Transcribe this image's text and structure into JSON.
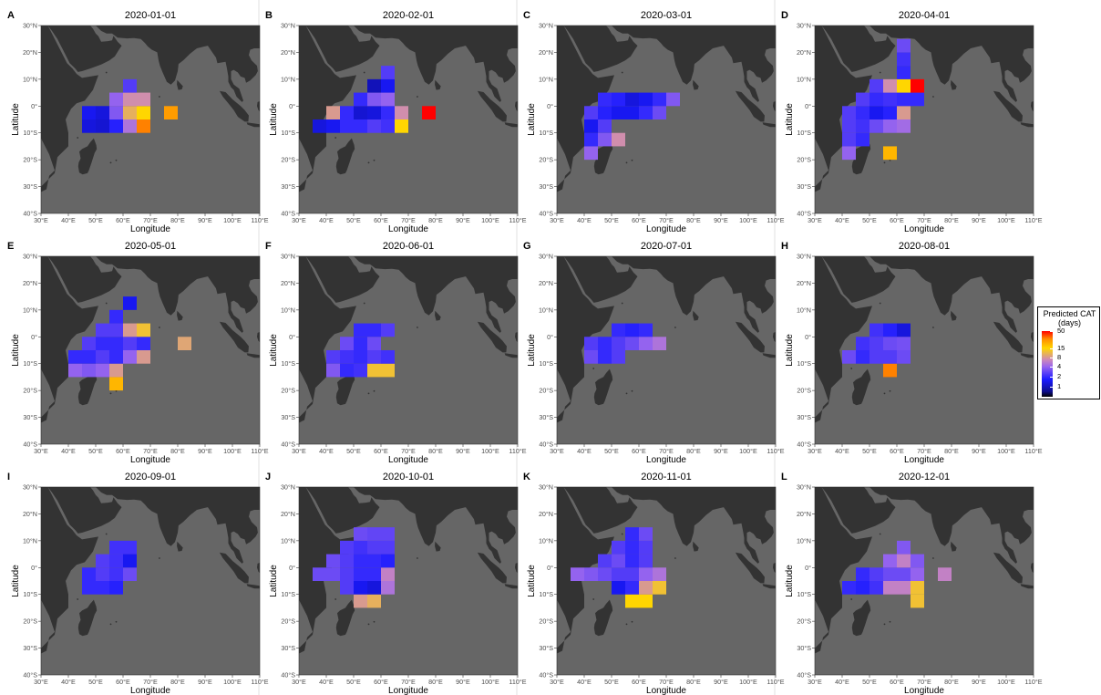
{
  "panels": [
    {
      "letter": "A",
      "date": "2020-01-01",
      "cells": [
        [
          45,
          -10,
          1.3
        ],
        [
          50,
          -10,
          1.2
        ],
        [
          55,
          -10,
          1.8
        ],
        [
          60,
          -10,
          5
        ],
        [
          65,
          -10,
          30
        ],
        [
          45,
          -5,
          1.5
        ],
        [
          50,
          -5,
          1.3
        ],
        [
          55,
          -5,
          3.5
        ],
        [
          60,
          -5,
          10
        ],
        [
          65,
          -5,
          15
        ],
        [
          75,
          -5,
          25
        ],
        [
          55,
          0,
          4
        ],
        [
          60,
          0,
          7
        ],
        [
          65,
          0,
          7
        ],
        [
          60,
          5,
          2.5
        ]
      ]
    },
    {
      "letter": "B",
      "date": "2020-02-01",
      "cells": [
        [
          35,
          -10,
          1.3
        ],
        [
          40,
          -10,
          1.5
        ],
        [
          45,
          -10,
          2
        ],
        [
          50,
          -10,
          2
        ],
        [
          55,
          -10,
          2.5
        ],
        [
          60,
          -10,
          2.2
        ],
        [
          65,
          -10,
          15
        ],
        [
          40,
          -5,
          8
        ],
        [
          45,
          -5,
          2
        ],
        [
          50,
          -5,
          1.2
        ],
        [
          55,
          -5,
          1.3
        ],
        [
          60,
          -5,
          2
        ],
        [
          65,
          -5,
          7
        ],
        [
          75,
          -5,
          50
        ],
        [
          50,
          0,
          2
        ],
        [
          55,
          0,
          3.5
        ],
        [
          60,
          0,
          4
        ],
        [
          55,
          5,
          1
        ],
        [
          60,
          5,
          1.5
        ],
        [
          60,
          10,
          2.5
        ]
      ]
    },
    {
      "letter": "C",
      "date": "2020-03-01",
      "cells": [
        [
          40,
          -20,
          4
        ],
        [
          40,
          -15,
          2
        ],
        [
          45,
          -15,
          3.5
        ],
        [
          40,
          -10,
          1.5
        ],
        [
          45,
          -10,
          2.5
        ],
        [
          50,
          -15,
          7
        ],
        [
          40,
          -5,
          2.5
        ],
        [
          45,
          -5,
          1.8
        ],
        [
          50,
          -5,
          1.5
        ],
        [
          55,
          -5,
          1.5
        ],
        [
          60,
          -5,
          2
        ],
        [
          65,
          -5,
          3
        ],
        [
          45,
          0,
          2
        ],
        [
          50,
          0,
          1.8
        ],
        [
          55,
          0,
          1.3
        ],
        [
          60,
          0,
          1.5
        ],
        [
          65,
          0,
          2
        ],
        [
          70,
          0,
          3.5
        ]
      ]
    },
    {
      "letter": "D",
      "date": "2020-04-01",
      "cells": [
        [
          40,
          -20,
          4
        ],
        [
          40,
          -15,
          2.5
        ],
        [
          45,
          -15,
          2
        ],
        [
          40,
          -10,
          2.5
        ],
        [
          45,
          -10,
          2.2
        ],
        [
          50,
          -10,
          3
        ],
        [
          55,
          -10,
          4
        ],
        [
          60,
          -10,
          4.5
        ],
        [
          40,
          -5,
          2.5
        ],
        [
          45,
          -5,
          2
        ],
        [
          50,
          -5,
          1.5
        ],
        [
          55,
          -5,
          1.8
        ],
        [
          60,
          -5,
          8
        ],
        [
          45,
          0,
          2.5
        ],
        [
          50,
          0,
          2
        ],
        [
          55,
          0,
          2.2
        ],
        [
          60,
          0,
          2
        ],
        [
          65,
          0,
          2
        ],
        [
          50,
          5,
          2.5
        ],
        [
          55,
          5,
          7
        ],
        [
          60,
          5,
          15
        ],
        [
          65,
          5,
          50
        ],
        [
          60,
          10,
          2
        ],
        [
          60,
          15,
          2.2
        ],
        [
          60,
          20,
          3
        ],
        [
          55,
          -20,
          20
        ]
      ]
    },
    {
      "letter": "E",
      "date": "2020-05-01",
      "cells": [
        [
          55,
          -20,
          20
        ],
        [
          40,
          -15,
          4
        ],
        [
          45,
          -15,
          3.5
        ],
        [
          50,
          -15,
          4
        ],
        [
          55,
          -15,
          8
        ],
        [
          40,
          -10,
          2
        ],
        [
          45,
          -10,
          2
        ],
        [
          50,
          -10,
          2.5
        ],
        [
          55,
          -10,
          2
        ],
        [
          60,
          -10,
          4
        ],
        [
          65,
          -10,
          8
        ],
        [
          45,
          -5,
          2.5
        ],
        [
          50,
          -5,
          2
        ],
        [
          55,
          -5,
          2
        ],
        [
          60,
          -5,
          2.5
        ],
        [
          65,
          -5,
          2
        ],
        [
          80,
          -5,
          9
        ],
        [
          50,
          0,
          2.5
        ],
        [
          55,
          0,
          2.5
        ],
        [
          60,
          0,
          8
        ],
        [
          65,
          0,
          12
        ],
        [
          55,
          5,
          2
        ],
        [
          60,
          10,
          1.5
        ]
      ]
    },
    {
      "letter": "F",
      "date": "2020-06-01",
      "cells": [
        [
          40,
          -15,
          3.5
        ],
        [
          45,
          -15,
          2
        ],
        [
          50,
          -15,
          2.2
        ],
        [
          55,
          -15,
          12
        ],
        [
          60,
          -15,
          12
        ],
        [
          40,
          -10,
          2.5
        ],
        [
          45,
          -10,
          2.2
        ],
        [
          50,
          -10,
          2
        ],
        [
          55,
          -10,
          2.5
        ],
        [
          60,
          -10,
          2.2
        ],
        [
          45,
          -5,
          3
        ],
        [
          50,
          -5,
          2
        ],
        [
          55,
          -5,
          3
        ],
        [
          50,
          0,
          2
        ],
        [
          55,
          0,
          2
        ],
        [
          60,
          0,
          2.5
        ]
      ]
    },
    {
      "letter": "G",
      "date": "2020-07-01",
      "cells": [
        [
          40,
          -10,
          3
        ],
        [
          45,
          -10,
          2
        ],
        [
          50,
          -10,
          2.5
        ],
        [
          40,
          -5,
          2.5
        ],
        [
          45,
          -5,
          2
        ],
        [
          50,
          -5,
          2.5
        ],
        [
          55,
          -5,
          3
        ],
        [
          60,
          -5,
          4
        ],
        [
          65,
          -5,
          5
        ],
        [
          50,
          0,
          2
        ],
        [
          55,
          0,
          1.8
        ],
        [
          60,
          0,
          2
        ]
      ]
    },
    {
      "letter": "H",
      "date": "2020-08-01",
      "cells": [
        [
          55,
          -15,
          30
        ],
        [
          40,
          -10,
          3
        ],
        [
          45,
          -10,
          2
        ],
        [
          50,
          -10,
          2.5
        ],
        [
          55,
          -10,
          2.5
        ],
        [
          60,
          -10,
          3
        ],
        [
          45,
          -5,
          2.2
        ],
        [
          50,
          -5,
          2.5
        ],
        [
          55,
          -5,
          3
        ],
        [
          60,
          -5,
          3.2
        ],
        [
          50,
          0,
          2.2
        ],
        [
          55,
          0,
          1.8
        ],
        [
          60,
          0,
          1.3
        ]
      ]
    },
    {
      "letter": "I",
      "date": "2020-09-01",
      "cells": [
        [
          45,
          -10,
          2
        ],
        [
          50,
          -10,
          2
        ],
        [
          55,
          -10,
          1.8
        ],
        [
          45,
          -5,
          2
        ],
        [
          50,
          -5,
          2.5
        ],
        [
          55,
          -5,
          2.2
        ],
        [
          60,
          -5,
          3
        ],
        [
          50,
          0,
          2.5
        ],
        [
          55,
          0,
          2.2
        ],
        [
          60,
          0,
          1.5
        ],
        [
          55,
          5,
          2.2
        ],
        [
          60,
          5,
          2.2
        ]
      ]
    },
    {
      "letter": "J",
      "date": "2020-10-01",
      "cells": [
        [
          50,
          -15,
          8
        ],
        [
          55,
          -15,
          10
        ],
        [
          45,
          -10,
          2.5
        ],
        [
          50,
          -10,
          1.5
        ],
        [
          55,
          -10,
          1.3
        ],
        [
          60,
          -10,
          5
        ],
        [
          35,
          -5,
          3
        ],
        [
          40,
          -5,
          3
        ],
        [
          45,
          -5,
          2.5
        ],
        [
          50,
          -5,
          2
        ],
        [
          55,
          -5,
          2
        ],
        [
          60,
          -5,
          6
        ],
        [
          40,
          0,
          3
        ],
        [
          45,
          0,
          2.5
        ],
        [
          50,
          0,
          2
        ],
        [
          55,
          0,
          2
        ],
        [
          60,
          0,
          1.8
        ],
        [
          45,
          5,
          2.5
        ],
        [
          50,
          5,
          2.2
        ],
        [
          55,
          5,
          2.5
        ],
        [
          60,
          5,
          2.5
        ],
        [
          50,
          10,
          3
        ],
        [
          55,
          10,
          2.8
        ],
        [
          60,
          10,
          2.8
        ]
      ]
    },
    {
      "letter": "K",
      "date": "2020-11-01",
      "cells": [
        [
          55,
          -15,
          15
        ],
        [
          60,
          -15,
          15
        ],
        [
          50,
          -10,
          1.5
        ],
        [
          55,
          -10,
          2
        ],
        [
          60,
          -10,
          8
        ],
        [
          65,
          -10,
          12
        ],
        [
          35,
          -5,
          4
        ],
        [
          40,
          -5,
          3.5
        ],
        [
          45,
          -5,
          3
        ],
        [
          50,
          -5,
          2.5
        ],
        [
          55,
          -5,
          2.5
        ],
        [
          60,
          -5,
          4
        ],
        [
          65,
          -5,
          5
        ],
        [
          45,
          0,
          2.5
        ],
        [
          50,
          0,
          3
        ],
        [
          55,
          0,
          2
        ],
        [
          60,
          0,
          2.5
        ],
        [
          50,
          5,
          2.5
        ],
        [
          55,
          5,
          2
        ],
        [
          60,
          5,
          2.5
        ],
        [
          55,
          10,
          2
        ],
        [
          60,
          10,
          3
        ]
      ]
    },
    {
      "letter": "L",
      "date": "2020-12-01",
      "cells": [
        [
          65,
          -15,
          12
        ],
        [
          40,
          -10,
          2
        ],
        [
          45,
          -10,
          1.8
        ],
        [
          50,
          -10,
          2.2
        ],
        [
          55,
          -10,
          6
        ],
        [
          60,
          -10,
          6
        ],
        [
          65,
          -10,
          12
        ],
        [
          45,
          -5,
          2
        ],
        [
          50,
          -5,
          2.5
        ],
        [
          55,
          -5,
          3
        ],
        [
          60,
          -5,
          3
        ],
        [
          65,
          -5,
          4
        ],
        [
          75,
          -5,
          6
        ],
        [
          55,
          0,
          4
        ],
        [
          60,
          0,
          6
        ],
        [
          65,
          0,
          3.5
        ],
        [
          60,
          5,
          3.5
        ]
      ]
    }
  ],
  "axes": {
    "xlabel": "Longitude",
    "ylabel": "Latitude",
    "lon_range": [
      30,
      110
    ],
    "lat_range": [
      -40,
      30
    ],
    "x_ticks": [
      {
        "value": 30,
        "label": "30°E"
      },
      {
        "value": 40,
        "label": "40°E"
      },
      {
        "value": 50,
        "label": "50°E"
      },
      {
        "value": 60,
        "label": "60°E"
      },
      {
        "value": 70,
        "label": "70°E"
      },
      {
        "value": 80,
        "label": "80°E"
      },
      {
        "value": 90,
        "label": "90°E"
      },
      {
        "value": 100,
        "label": "100°E"
      },
      {
        "value": 110,
        "label": "110°E"
      }
    ],
    "y_ticks": [
      {
        "value": 30,
        "label": "30°N"
      },
      {
        "value": 20,
        "label": "20°N"
      },
      {
        "value": 10,
        "label": "10°N"
      },
      {
        "value": 0,
        "label": "0°"
      },
      {
        "value": -10,
        "label": "10°S"
      },
      {
        "value": -20,
        "label": "20°S"
      },
      {
        "value": -30,
        "label": "30°S"
      },
      {
        "value": -40,
        "label": "40°S"
      }
    ]
  },
  "legend": {
    "title_line1": "Predicted CAT",
    "title_line2": "(days)",
    "ticks": [
      {
        "value": 50,
        "label": "50"
      },
      {
        "value": 15,
        "label": "15"
      },
      {
        "value": 8,
        "label": "8"
      },
      {
        "value": 4,
        "label": "4"
      },
      {
        "value": 2,
        "label": "2"
      },
      {
        "value": 1,
        "label": "1"
      }
    ],
    "scale_range": [
      0.5,
      50
    ],
    "colors": [
      "#000000",
      "#0d0d8c",
      "#1a1aff",
      "#9966ee",
      "#cc88bb",
      "#ffd700",
      "#ff8c00",
      "#ff0000"
    ]
  },
  "colors": {
    "ocean": "#666666",
    "land": "#333333",
    "border": "#444444"
  }
}
